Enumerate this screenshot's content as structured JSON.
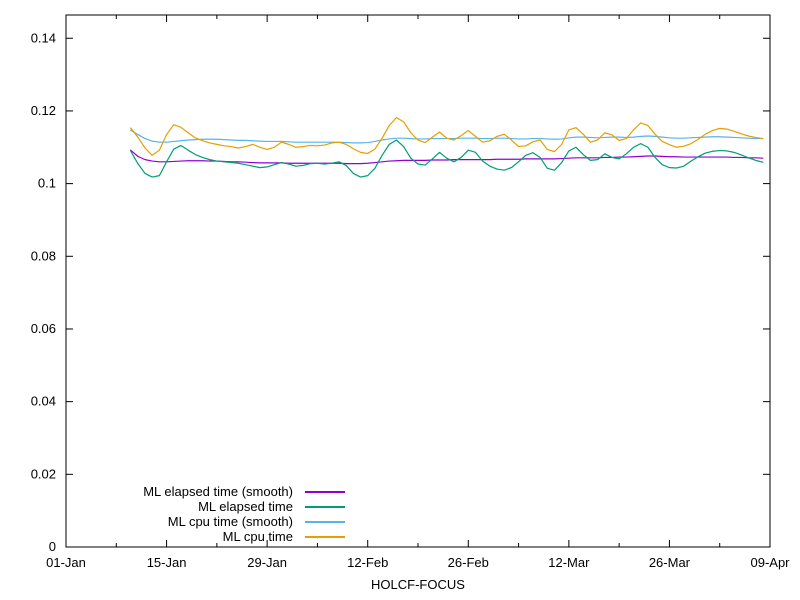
{
  "figure": {
    "background": "#ffffff",
    "axis_color": "#000000",
    "text_color": "#000000"
  },
  "chart_data": {
    "type": "line",
    "title": "",
    "xlabel": "HOLCF-FOCUS",
    "ylabel": "",
    "grid": false,
    "legend_position": "bottom-left",
    "x_unit": "days since 01-Jan",
    "xlim_days": [
      0,
      98
    ],
    "ylim": [
      0,
      0.1464
    ],
    "xticks": [
      {
        "day": 0,
        "label": "01-Jan"
      },
      {
        "day": 14,
        "label": "15-Jan"
      },
      {
        "day": 28,
        "label": "29-Jan"
      },
      {
        "day": 42,
        "label": "12-Feb"
      },
      {
        "day": 56,
        "label": "26-Feb"
      },
      {
        "day": 70,
        "label": "12-Mar"
      },
      {
        "day": 84,
        "label": "26-Mar"
      },
      {
        "day": 98,
        "label": "09-Apr"
      }
    ],
    "xticks_minor_days": [
      7,
      21,
      35,
      49,
      63,
      77,
      91
    ],
    "yticks": [
      {
        "value": 0,
        "label": "0"
      },
      {
        "value": 0.02,
        "label": "0.02"
      },
      {
        "value": 0.04,
        "label": "0.04"
      },
      {
        "value": 0.06,
        "label": "0.06"
      },
      {
        "value": 0.08,
        "label": "0.08"
      },
      {
        "value": 0.1,
        "label": "0.1"
      },
      {
        "value": 0.12,
        "label": "0.12"
      },
      {
        "value": 0.14,
        "label": "0.14"
      }
    ],
    "x_days": [
      9,
      10,
      11,
      12,
      13,
      14,
      15,
      16,
      17,
      18,
      19,
      20,
      21,
      22,
      23,
      24,
      25,
      26,
      27,
      28,
      29,
      30,
      31,
      32,
      33,
      34,
      35,
      36,
      37,
      38,
      39,
      40,
      41,
      42,
      43,
      44,
      45,
      46,
      47,
      48,
      49,
      50,
      51,
      52,
      53,
      54,
      55,
      56,
      57,
      58,
      59,
      60,
      61,
      62,
      63,
      64,
      65,
      66,
      67,
      68,
      69,
      70,
      71,
      72,
      73,
      74,
      75,
      76,
      77,
      78,
      79,
      80,
      81,
      82,
      83,
      84,
      85,
      86,
      87,
      88,
      89,
      90,
      91,
      92,
      93,
      94,
      95,
      96,
      97
    ],
    "series": [
      {
        "name": "ML elapsed time (smooth)",
        "color": "#9400d3",
        "values": [
          0.1092,
          0.1075,
          0.1066,
          0.1062,
          0.106,
          0.106,
          0.1061,
          0.1062,
          0.1063,
          0.1063,
          0.1063,
          0.1062,
          0.1062,
          0.1061,
          0.106,
          0.106,
          0.1059,
          0.1058,
          0.1057,
          0.1057,
          0.1057,
          0.1057,
          0.1056,
          0.1056,
          0.1056,
          0.1056,
          0.1056,
          0.1056,
          0.1056,
          0.1056,
          0.1055,
          0.1055,
          0.1055,
          0.1056,
          0.1058,
          0.106,
          0.1062,
          0.1063,
          0.1064,
          0.1064,
          0.1064,
          0.1064,
          0.1065,
          0.1065,
          0.1065,
          0.1066,
          0.1066,
          0.1066,
          0.1066,
          0.1066,
          0.1066,
          0.1067,
          0.1067,
          0.1067,
          0.1067,
          0.1068,
          0.1068,
          0.1068,
          0.1068,
          0.1068,
          0.1069,
          0.107,
          0.1071,
          0.1071,
          0.1071,
          0.1071,
          0.1072,
          0.1072,
          0.1073,
          0.1073,
          0.1074,
          0.1075,
          0.1076,
          0.1076,
          0.1075,
          0.1074,
          0.1074,
          0.1073,
          0.1073,
          0.1073,
          0.1073,
          0.1073,
          0.1073,
          0.1073,
          0.1072,
          0.1072,
          0.1071,
          0.1071,
          0.107
        ]
      },
      {
        "name": "ML elapsed time",
        "color": "#009e73",
        "values": [
          0.109,
          0.1055,
          0.1028,
          0.1018,
          0.1022,
          0.106,
          0.1095,
          0.1105,
          0.1092,
          0.108,
          0.1072,
          0.1066,
          0.1062,
          0.106,
          0.1058,
          0.1056,
          0.1052,
          0.1048,
          0.1044,
          0.1046,
          0.1052,
          0.1058,
          0.1054,
          0.1048,
          0.105,
          0.1055,
          0.1056,
          0.1054,
          0.1056,
          0.106,
          0.105,
          0.1028,
          0.1018,
          0.1022,
          0.1042,
          0.1078,
          0.1108,
          0.112,
          0.1102,
          0.107,
          0.1054,
          0.1051,
          0.1068,
          0.1086,
          0.107,
          0.106,
          0.1072,
          0.1092,
          0.1086,
          0.1062,
          0.1048,
          0.104,
          0.1037,
          0.1044,
          0.106,
          0.1078,
          0.1085,
          0.1072,
          0.1042,
          0.1037,
          0.1058,
          0.109,
          0.11,
          0.108,
          0.1064,
          0.1066,
          0.1082,
          0.1072,
          0.1068,
          0.1082,
          0.11,
          0.111,
          0.11,
          0.1072,
          0.1052,
          0.1044,
          0.1043,
          0.1048,
          0.1062,
          0.1074,
          0.1084,
          0.1089,
          0.1091,
          0.109,
          0.1086,
          0.1079,
          0.1071,
          0.1064,
          0.1059
        ]
      },
      {
        "name": "ML cpu time (smooth)",
        "color": "#56b4e9",
        "values": [
          0.1147,
          0.1135,
          0.1124,
          0.1117,
          0.1114,
          0.1114,
          0.1116,
          0.1118,
          0.112,
          0.1121,
          0.1122,
          0.1122,
          0.1122,
          0.1121,
          0.112,
          0.1119,
          0.1119,
          0.1118,
          0.1117,
          0.1116,
          0.1116,
          0.1116,
          0.1115,
          0.1114,
          0.1114,
          0.1114,
          0.1114,
          0.1114,
          0.1114,
          0.1114,
          0.1113,
          0.1112,
          0.1112,
          0.1113,
          0.1116,
          0.112,
          0.1123,
          0.1125,
          0.1125,
          0.1124,
          0.1123,
          0.1123,
          0.1124,
          0.1124,
          0.1124,
          0.1124,
          0.1125,
          0.1125,
          0.1125,
          0.1124,
          0.1124,
          0.1125,
          0.1125,
          0.1124,
          0.1123,
          0.1123,
          0.1124,
          0.1124,
          0.1123,
          0.1122,
          0.1123,
          0.1126,
          0.1128,
          0.1128,
          0.1127,
          0.1126,
          0.1127,
          0.1128,
          0.1128,
          0.1127,
          0.1128,
          0.113,
          0.1131,
          0.113,
          0.1128,
          0.1126,
          0.1125,
          0.1125,
          0.1126,
          0.1127,
          0.1128,
          0.1129,
          0.1129,
          0.1128,
          0.1127,
          0.1126,
          0.1125,
          0.1124,
          0.1124
        ]
      },
      {
        "name": "ML cpu time",
        "color": "#e69f00",
        "values": [
          0.1153,
          0.1128,
          0.1098,
          0.1078,
          0.1092,
          0.1135,
          0.1162,
          0.1155,
          0.114,
          0.1126,
          0.1118,
          0.1112,
          0.1108,
          0.1104,
          0.1102,
          0.1098,
          0.1102,
          0.1108,
          0.11,
          0.1094,
          0.11,
          0.1114,
          0.1108,
          0.11,
          0.1102,
          0.1105,
          0.1104,
          0.1106,
          0.1112,
          0.1114,
          0.1108,
          0.1096,
          0.1086,
          0.1083,
          0.1095,
          0.1125,
          0.116,
          0.1182,
          0.117,
          0.114,
          0.112,
          0.1113,
          0.1128,
          0.1142,
          0.1125,
          0.112,
          0.1132,
          0.1146,
          0.113,
          0.1114,
          0.1118,
          0.113,
          0.1136,
          0.112,
          0.1102,
          0.1104,
          0.1115,
          0.112,
          0.1094,
          0.1088,
          0.1108,
          0.1148,
          0.1154,
          0.1136,
          0.1114,
          0.112,
          0.114,
          0.1134,
          0.1119,
          0.1124,
          0.1148,
          0.1167,
          0.116,
          0.1136,
          0.1116,
          0.1107,
          0.11,
          0.1103,
          0.111,
          0.1122,
          0.1136,
          0.1146,
          0.1152,
          0.115,
          0.1144,
          0.1137,
          0.1131,
          0.1127,
          0.1124
        ]
      }
    ]
  }
}
